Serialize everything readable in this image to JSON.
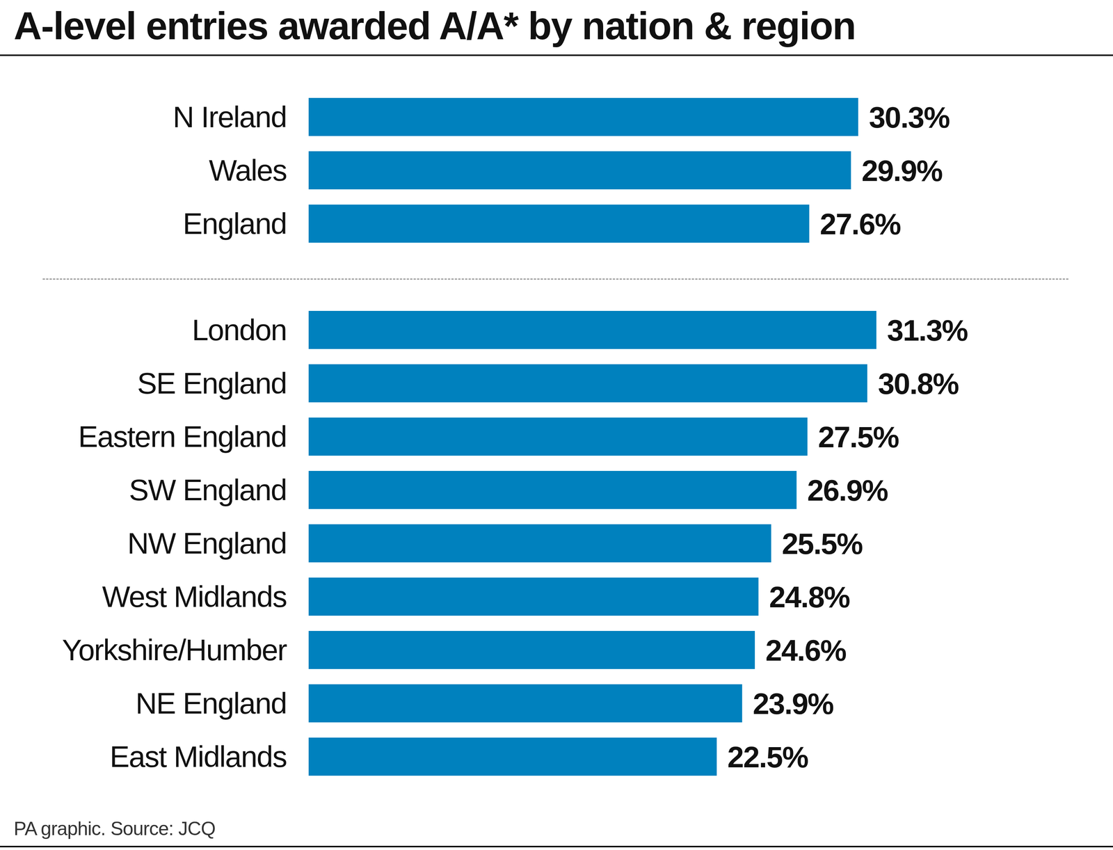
{
  "title": "A-level entries awarded A/A* by nation & region",
  "note": "PA graphic. Source: JCQ",
  "chart_data": [
    {
      "type": "bar",
      "orientation": "horizontal",
      "categories": [
        "N Ireland",
        "Wales",
        "England"
      ],
      "values": [
        30.3,
        29.9,
        27.6
      ],
      "value_labels": [
        "30.3%",
        "29.9%",
        "27.6%"
      ],
      "color": "#0081be",
      "data_labels": true,
      "tick_labels": "y",
      "grid": false
    },
    {
      "type": "bar",
      "orientation": "horizontal",
      "categories": [
        "London",
        "SE England",
        "Eastern England",
        "SW England",
        "NW England",
        "West Midlands",
        "Yorkshire/Humber",
        "NE England",
        "East Midlands"
      ],
      "values": [
        31.3,
        30.8,
        27.5,
        26.9,
        25.5,
        24.8,
        24.6,
        23.9,
        22.5
      ],
      "value_labels": [
        "31.3%",
        "30.8%",
        "27.5%",
        "26.9%",
        "25.5%",
        "24.8%",
        "24.6%",
        "23.9%",
        "22.5%"
      ],
      "color": "#0081be",
      "data_labels": true,
      "tick_labels": "y",
      "grid": false
    }
  ]
}
